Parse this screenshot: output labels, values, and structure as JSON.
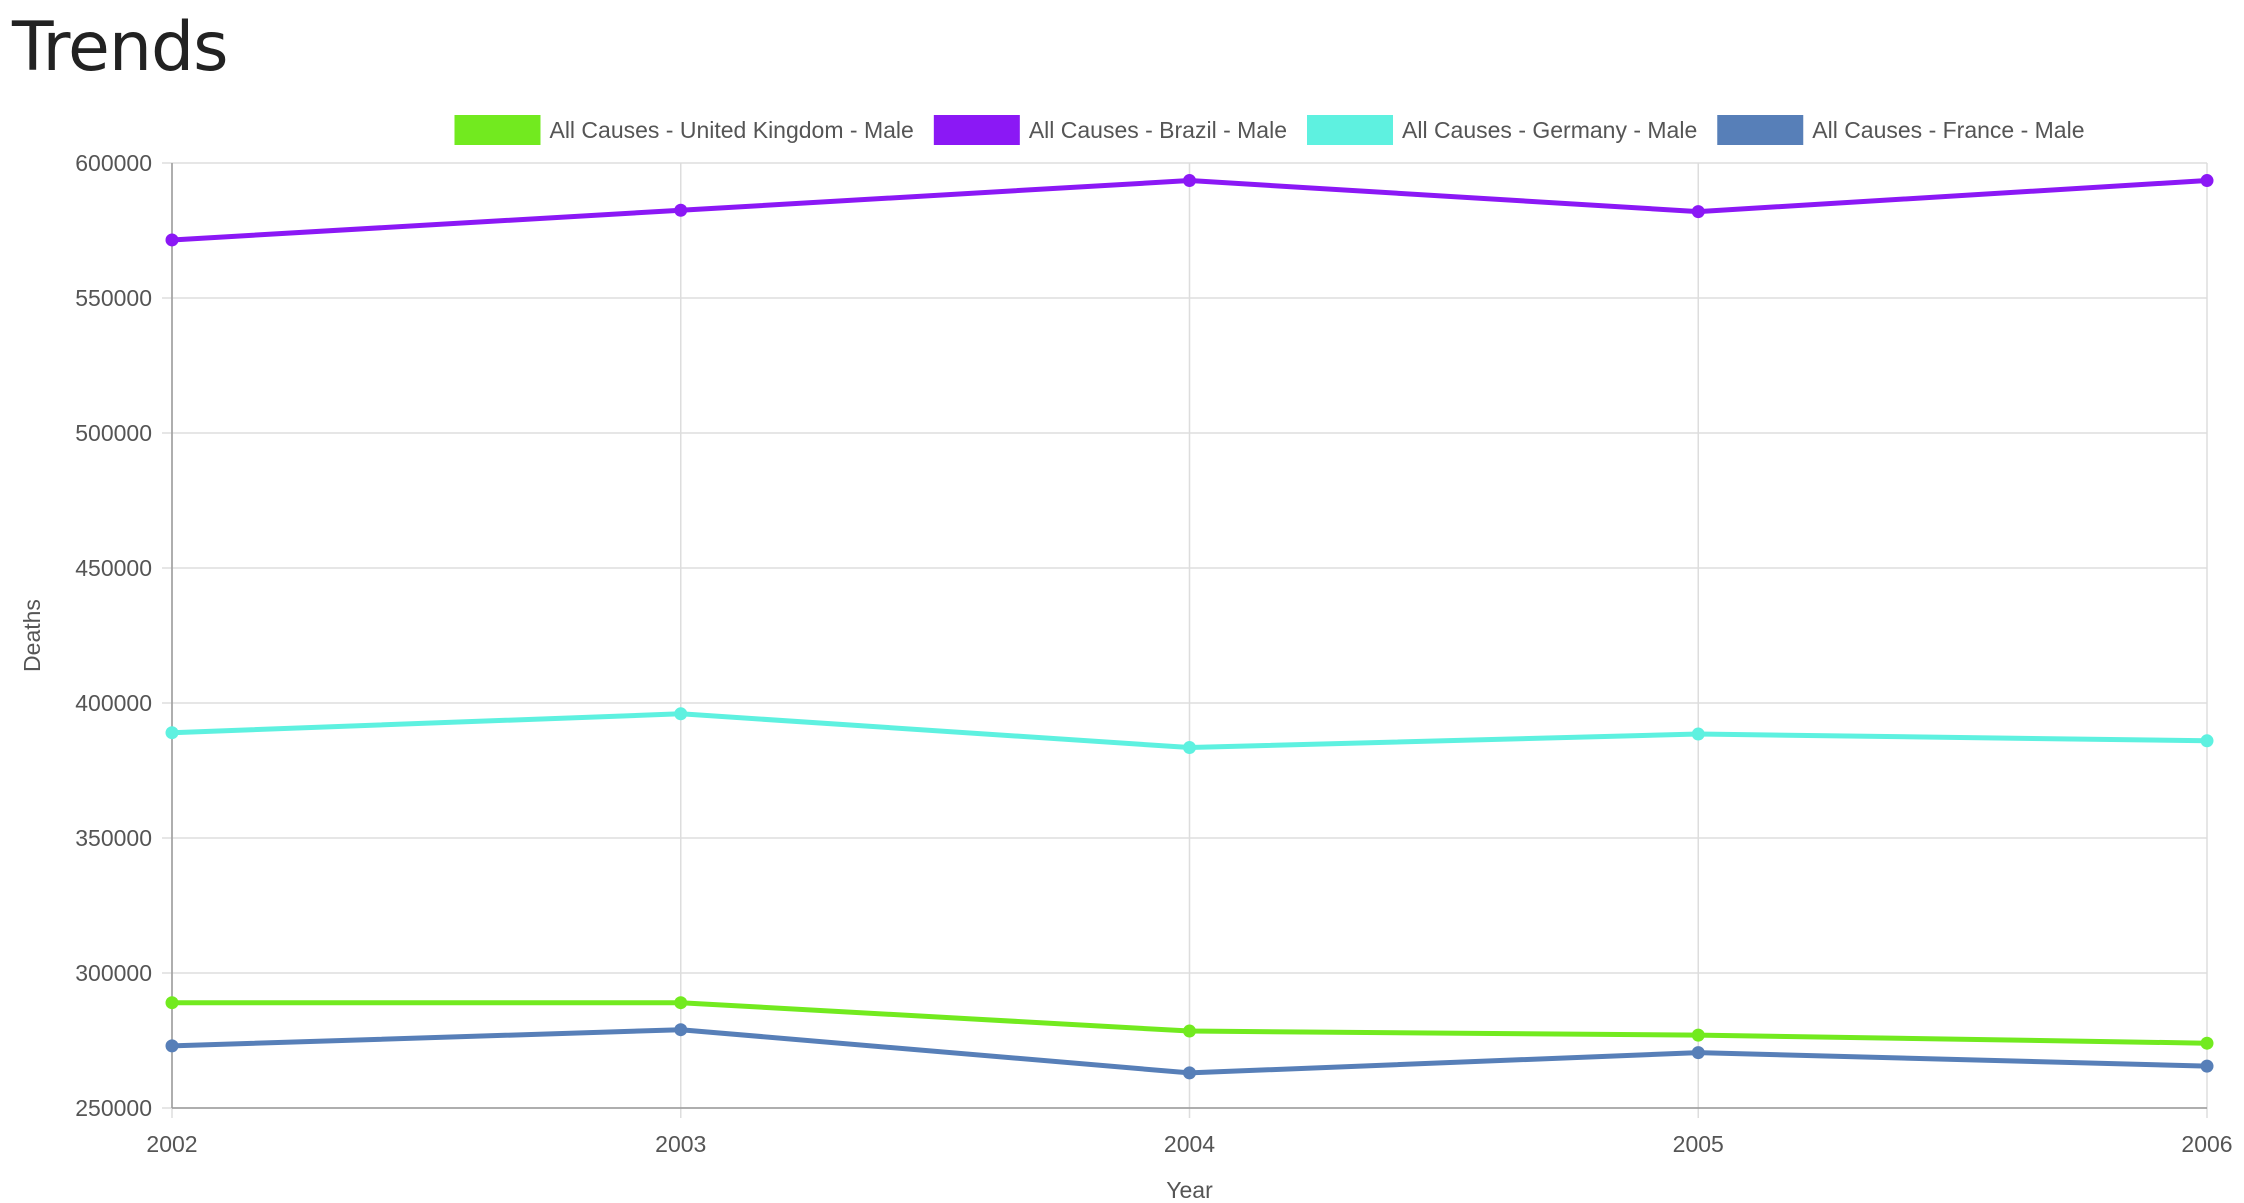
{
  "page": {
    "title": "Trends"
  },
  "chart_data": {
    "type": "line",
    "title": "",
    "xlabel": "Year",
    "ylabel": "Deaths",
    "x": [
      "2002",
      "2003",
      "2004",
      "2005",
      "2006"
    ],
    "ylim": [
      250000,
      600000
    ],
    "yticks": [
      "250000",
      "300000",
      "350000",
      "400000",
      "450000",
      "500000",
      "550000",
      "600000"
    ],
    "grid": true,
    "legend_position": "top-center",
    "series": [
      {
        "name": "All Causes - United Kingdom  - Male",
        "color": "#72ea1f",
        "values": [
          289000,
          289000,
          278500,
          277000,
          274000
        ]
      },
      {
        "name": "All Causes - Brazil  - Male",
        "color": "#8b18f5",
        "values": [
          571500,
          582500,
          593500,
          582000,
          593500
        ]
      },
      {
        "name": "All Causes - Germany  - Male",
        "color": "#5ef1e0",
        "values": [
          389000,
          396000,
          383500,
          388500,
          386000
        ]
      },
      {
        "name": "All Causes - France  - Male",
        "color": "#577fb8",
        "values": [
          273000,
          279000,
          263000,
          270500,
          265500
        ]
      }
    ]
  }
}
